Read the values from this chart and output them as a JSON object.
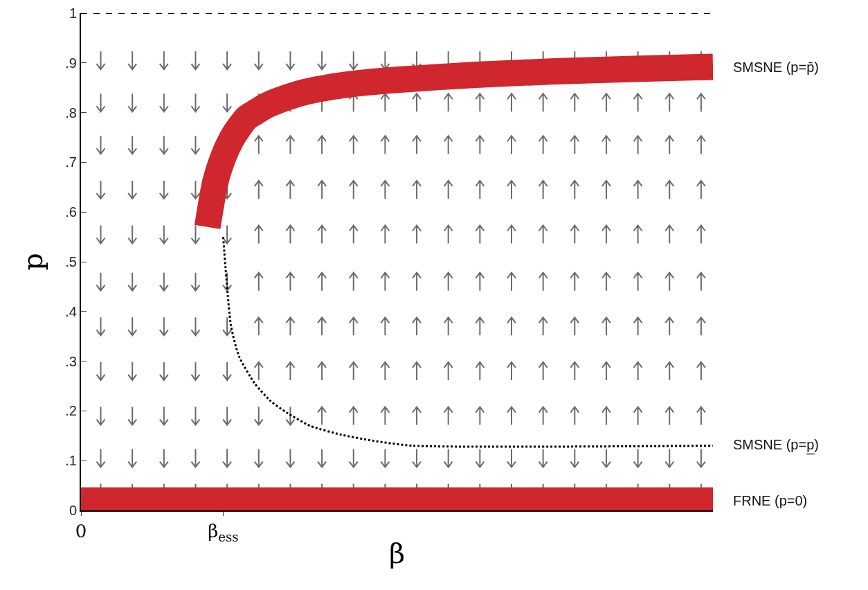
{
  "chart_data": {
    "type": "line",
    "xlabel": "β",
    "ylabel": "p",
    "categories": [
      "0",
      null,
      null,
      null,
      null,
      null,
      null,
      null,
      null,
      null,
      null,
      null,
      null,
      null,
      null,
      null,
      null,
      null,
      "β$_{ess}$",
      null,
      null,
      null,
      null,
      null,
      null,
      null,
      null,
      null,
      null,
      null,
      null,
      null,
      null,
      null,
      null,
      null,
      null,
      null,
      null,
      null,
      null,
      null,
      null,
      null,
      null,
      null,
      null,
      null,
      null,
      null,
      null,
      null,
      null,
      null,
      null,
      null,
      null,
      null,
      null,
      null,
      null,
      null,
      null,
      null,
      null,
      null,
      null,
      null,
      null,
      null,
      null,
      null,
      null,
      null,
      null,
      null,
      null,
      null,
      null,
      null,
      null
    ],
    "series": [
      {
        "name": "SMSNE (p=p̄)",
        "color": "#d0262e",
        "line_style": "solid",
        "values": [
          null,
          null,
          null,
          null,
          null,
          null,
          null,
          null,
          null,
          null,
          null,
          null,
          null,
          null,
          null,
          null,
          0.57,
          0.66,
          0.71,
          0.745,
          0.77,
          0.79,
          0.8,
          0.81,
          0.818,
          null,
          0.83,
          null,
          0.84,
          null,
          0.847,
          null,
          null,
          null,
          0.857,
          null,
          null,
          null,
          null,
          null,
          0.866,
          null,
          null,
          null,
          null,
          null,
          null,
          null,
          null,
          null,
          0.876,
          null,
          null,
          null,
          null,
          null,
          null,
          null,
          null,
          null,
          0.883,
          null,
          null,
          null,
          null,
          null,
          null,
          null,
          null,
          null,
          0.888,
          null,
          null,
          null,
          null,
          null,
          null,
          null,
          null,
          null,
          0.892
        ]
      },
      {
        "name": "SMSNE (p=p̲)",
        "color": "#000000",
        "line_style": "dotted",
        "values": [
          null,
          null,
          null,
          null,
          null,
          null,
          null,
          null,
          null,
          null,
          null,
          null,
          null,
          null,
          null,
          null,
          null,
          null,
          0.55,
          0.37,
          0.31,
          null,
          0.255,
          null,
          0.22,
          null,
          0.197,
          null,
          null,
          0.17,
          null,
          null,
          null,
          0.152,
          null,
          null,
          null,
          0.14,
          null,
          null,
          null,
          null,
          0.13,
          null,
          null,
          null,
          null,
          null,
          null,
          null,
          null,
          null,
          null,
          null,
          null,
          null,
          null,
          null,
          null,
          null,
          null,
          null,
          null,
          null,
          null,
          null,
          null,
          null,
          null,
          null,
          null,
          null,
          null,
          null,
          null,
          null,
          null,
          null,
          null,
          null,
          0.13
        ]
      },
      {
        "name": "FRNE (p=0)",
        "color": "#d0262e",
        "line_style": "solid",
        "values": [
          0.02,
          null,
          null,
          null,
          null,
          null,
          null,
          null,
          null,
          null,
          null,
          null,
          null,
          null,
          null,
          null,
          null,
          null,
          null,
          null,
          null,
          null,
          null,
          null,
          null,
          null,
          null,
          null,
          null,
          null,
          null,
          null,
          null,
          null,
          null,
          null,
          null,
          null,
          null,
          null,
          null,
          null,
          null,
          null,
          null,
          null,
          null,
          null,
          null,
          null,
          null,
          null,
          null,
          null,
          null,
          null,
          null,
          null,
          null,
          null,
          null,
          null,
          null,
          null,
          null,
          null,
          null,
          null,
          null,
          null,
          null,
          null,
          null,
          null,
          null,
          null,
          null,
          null,
          null,
          null,
          0.02
        ]
      }
    ],
    "ylim": [
      0,
      1
    ],
    "yticks": [
      0,
      {
        "value": 0.1,
        "label": ".1"
      },
      {
        "value": 0.2,
        "label": ".2"
      },
      {
        "value": 0.3,
        "label": ".3"
      },
      {
        "value": 0.4,
        "label": ".4"
      },
      {
        "value": 0.5,
        "label": ".5"
      },
      {
        "value": 0.6,
        "label": ".6"
      },
      {
        "value": 0.7,
        "label": ".7"
      },
      {
        "value": 0.8,
        "label": ".8"
      },
      {
        "value": 0.9,
        "label": ".9"
      },
      1
    ],
    "ref_lines": [
      {
        "axis": "y",
        "value": 1,
        "color": "#000000",
        "line_style": "dashed"
      }
    ],
    "grid": false,
    "legend": false
  }
}
